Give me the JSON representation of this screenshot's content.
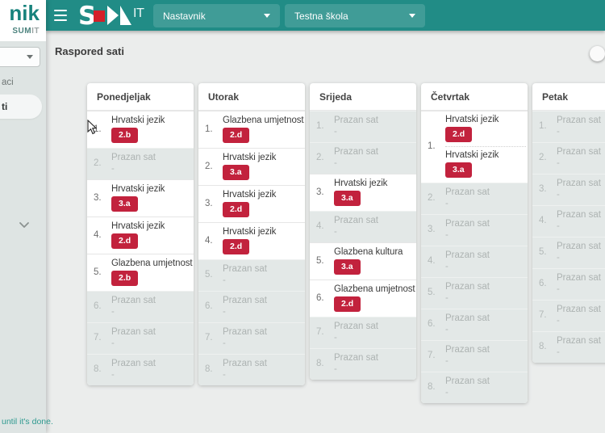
{
  "colors": {
    "header_teal": "#218c86",
    "badge_red": "#c2223d"
  },
  "header": {
    "logo_letter_s": "S",
    "logo_letters_it": "IT",
    "role_select": {
      "value": "Nastavnik"
    },
    "school_select": {
      "value": "Testna škola"
    }
  },
  "sidebar": {
    "logo_fragment": "nik",
    "logo_sub_strong": "SUM",
    "logo_sub_light": "IT",
    "menu_fragment": "aci",
    "active_item_fragment": "ti",
    "quote_fragment": "until it's done."
  },
  "page": {
    "title": "Raspored sati"
  },
  "schedule": {
    "empty_label": "Prazan sat",
    "empty_value": "-",
    "days": [
      {
        "name": "Ponedjeljak",
        "slots": [
          {
            "num": "1.",
            "lessons": [
              {
                "subject": "Hrvatski jezik",
                "group": "2.b"
              }
            ]
          },
          {
            "num": "2.",
            "lessons": []
          },
          {
            "num": "3.",
            "lessons": [
              {
                "subject": "Hrvatski jezik",
                "group": "3.a"
              }
            ]
          },
          {
            "num": "4.",
            "lessons": [
              {
                "subject": "Hrvatski jezik",
                "group": "2.d"
              }
            ]
          },
          {
            "num": "5.",
            "lessons": [
              {
                "subject": "Glazbena umjetnost",
                "group": "2.b"
              }
            ]
          },
          {
            "num": "6.",
            "lessons": []
          },
          {
            "num": "7.",
            "lessons": []
          },
          {
            "num": "8.",
            "lessons": []
          }
        ]
      },
      {
        "name": "Utorak",
        "slots": [
          {
            "num": "1.",
            "lessons": [
              {
                "subject": "Glazbena umjetnost",
                "group": "2.d"
              }
            ]
          },
          {
            "num": "2.",
            "lessons": [
              {
                "subject": "Hrvatski jezik",
                "group": "3.a"
              }
            ]
          },
          {
            "num": "3.",
            "lessons": [
              {
                "subject": "Hrvatski jezik",
                "group": "2.d"
              }
            ]
          },
          {
            "num": "4.",
            "lessons": [
              {
                "subject": "Hrvatski jezik",
                "group": "2.d"
              }
            ]
          },
          {
            "num": "5.",
            "lessons": []
          },
          {
            "num": "6.",
            "lessons": []
          },
          {
            "num": "7.",
            "lessons": []
          },
          {
            "num": "8.",
            "lessons": []
          }
        ]
      },
      {
        "name": "Srijeda",
        "slots": [
          {
            "num": "1.",
            "lessons": []
          },
          {
            "num": "2.",
            "lessons": []
          },
          {
            "num": "3.",
            "lessons": [
              {
                "subject": "Hrvatski jezik",
                "group": "3.a"
              }
            ]
          },
          {
            "num": "4.",
            "lessons": []
          },
          {
            "num": "5.",
            "lessons": [
              {
                "subject": "Glazbena kultura",
                "group": "3.a"
              }
            ]
          },
          {
            "num": "6.",
            "lessons": [
              {
                "subject": "Glazbena umjetnost",
                "group": "2.d"
              }
            ]
          },
          {
            "num": "7.",
            "lessons": []
          },
          {
            "num": "8.",
            "lessons": []
          }
        ]
      },
      {
        "name": "Četvrtak",
        "slots": [
          {
            "num": "1.",
            "lessons": [
              {
                "subject": "Hrvatski jezik",
                "group": "2.d"
              },
              {
                "subject": "Hrvatski jezik",
                "group": "3.a"
              }
            ]
          },
          {
            "num": "2.",
            "lessons": []
          },
          {
            "num": "3.",
            "lessons": []
          },
          {
            "num": "4.",
            "lessons": []
          },
          {
            "num": "5.",
            "lessons": []
          },
          {
            "num": "6.",
            "lessons": []
          },
          {
            "num": "7.",
            "lessons": []
          },
          {
            "num": "8.",
            "lessons": []
          }
        ]
      },
      {
        "name": "Petak",
        "slots": [
          {
            "num": "1.",
            "lessons": []
          },
          {
            "num": "2.",
            "lessons": []
          },
          {
            "num": "3.",
            "lessons": []
          },
          {
            "num": "4.",
            "lessons": []
          },
          {
            "num": "5.",
            "lessons": []
          },
          {
            "num": "6.",
            "lessons": []
          },
          {
            "num": "7.",
            "lessons": []
          },
          {
            "num": "8.",
            "lessons": []
          }
        ]
      }
    ]
  }
}
